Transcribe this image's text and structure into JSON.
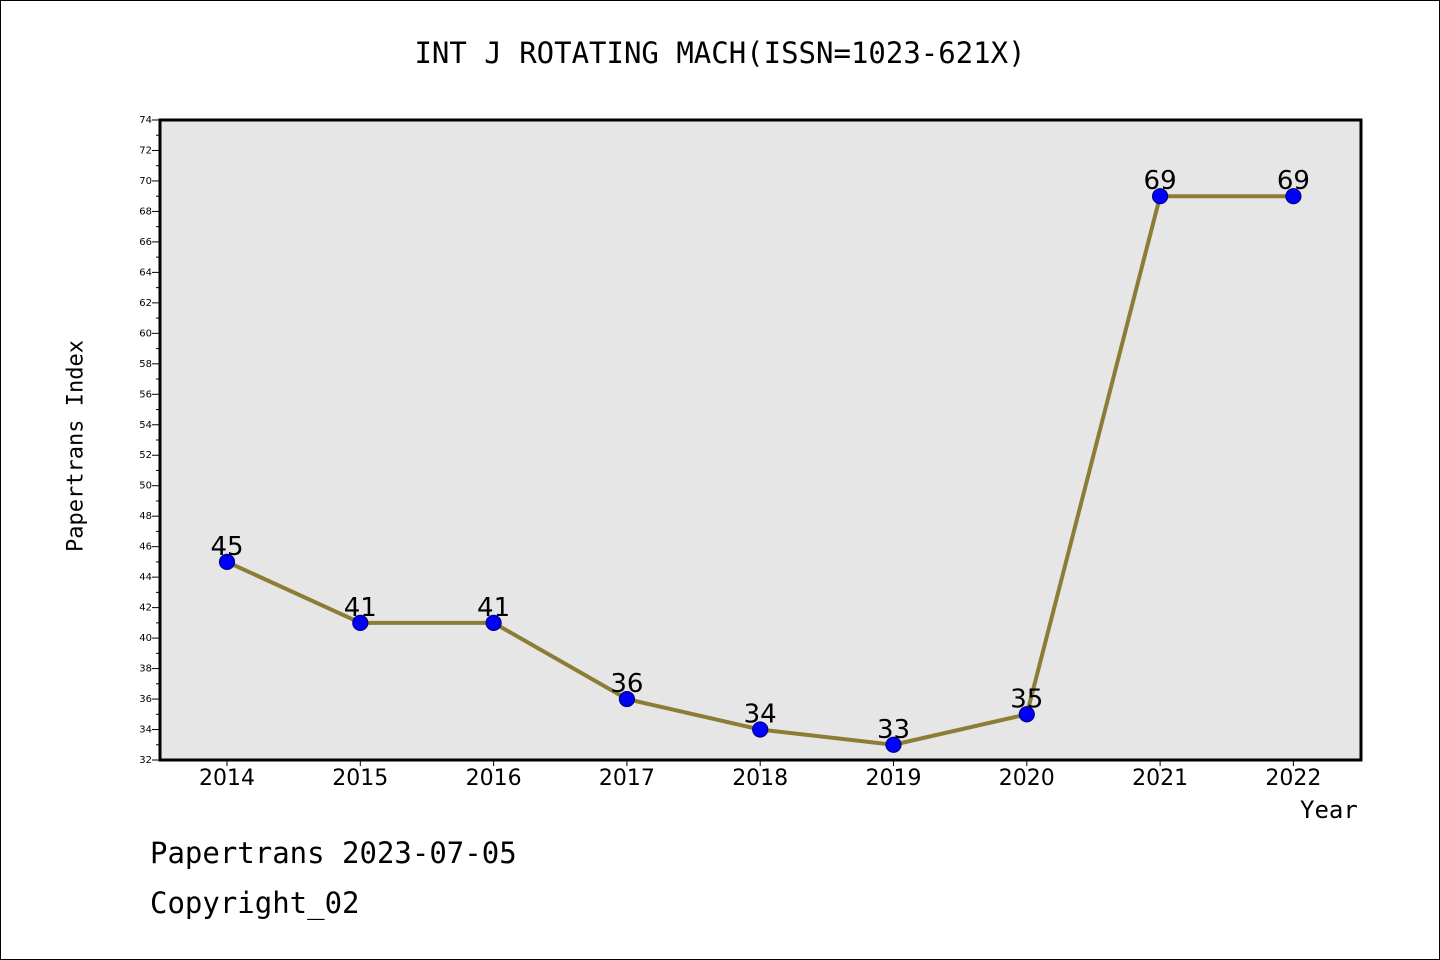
{
  "chart_data": {
    "type": "line",
    "title": "INT J ROTATING MACH(ISSN=1023-621X)",
    "xlabel": "Year",
    "ylabel": "Papertrans Index",
    "categories": [
      "2014",
      "2015",
      "2016",
      "2017",
      "2018",
      "2019",
      "2020",
      "2021",
      "2022"
    ],
    "series": [
      {
        "values": [
          45,
          41,
          41,
          36,
          34,
          33,
          35,
          69,
          69
        ]
      }
    ],
    "data_labels": [
      "45",
      "41",
      "41",
      "36",
      "34",
      "33",
      "35",
      "69",
      "69"
    ],
    "y_ticks": [
      "32",
      "34",
      "36",
      "38",
      "40",
      "42",
      "44",
      "46",
      "48",
      "50",
      "52",
      "54",
      "56",
      "58",
      "60",
      "62",
      "64",
      "66",
      "68",
      "70",
      "72",
      "74"
    ],
    "ylim": [
      32,
      74
    ],
    "grid": false,
    "legend": "none"
  },
  "colors": {
    "line": "#8b7d35",
    "marker_fill": "#0000ff",
    "marker_edge": "#000080",
    "plot_background": "#e6e6e6"
  },
  "footer": {
    "line1": "Papertrans 2023-07-05",
    "line2": "Copyright_02"
  }
}
